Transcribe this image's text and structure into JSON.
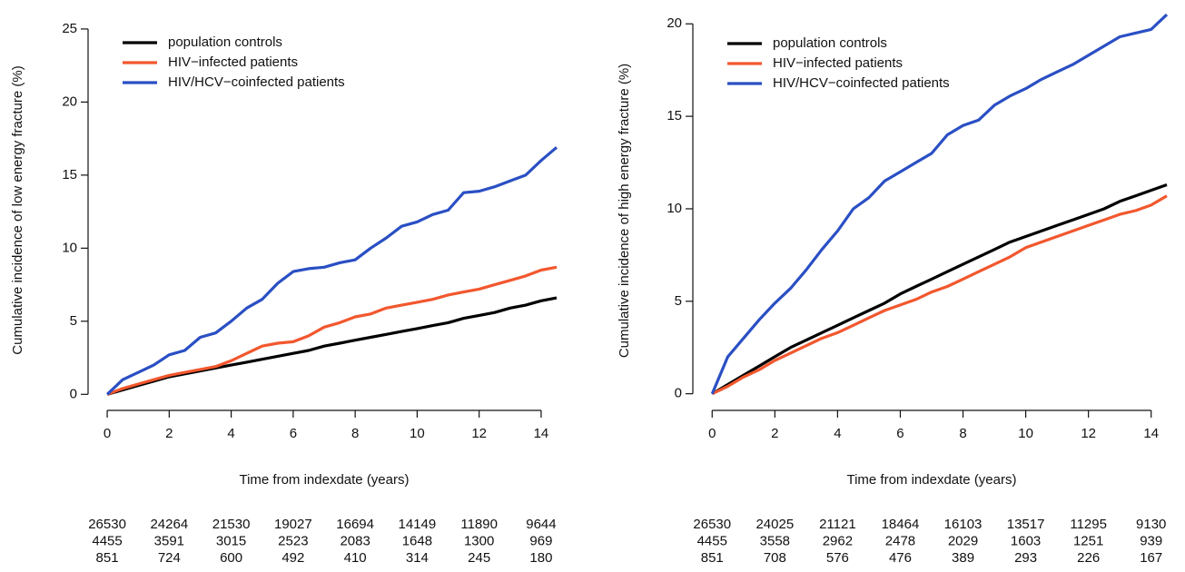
{
  "chart_data": [
    {
      "type": "line",
      "x_label": "Time from indexdate (years)",
      "y_label": "Cumulative incidence of low energy fracture (%)",
      "x": [
        0,
        0.5,
        1,
        1.5,
        2,
        2.5,
        3,
        3.5,
        4,
        4.5,
        5,
        5.5,
        6,
        6.5,
        7,
        7.5,
        8,
        8.5,
        9,
        9.5,
        10,
        10.5,
        11,
        11.5,
        12,
        12.5,
        13,
        13.5,
        14,
        14.5
      ],
      "series": [
        {
          "name": "population controls",
          "color": "#000000",
          "values": [
            0,
            0.3,
            0.6,
            0.9,
            1.2,
            1.4,
            1.6,
            1.8,
            2.0,
            2.2,
            2.4,
            2.6,
            2.8,
            3.0,
            3.3,
            3.5,
            3.7,
            3.9,
            4.1,
            4.3,
            4.5,
            4.7,
            4.9,
            5.2,
            5.4,
            5.6,
            5.9,
            6.1,
            6.4,
            6.6
          ]
        },
        {
          "name": "HIV−infected patients",
          "color": "#f2572e",
          "values": [
            0,
            0.4,
            0.7,
            1.0,
            1.3,
            1.5,
            1.7,
            1.9,
            2.3,
            2.8,
            3.3,
            3.5,
            3.6,
            4.0,
            4.6,
            4.9,
            5.3,
            5.5,
            5.9,
            6.1,
            6.3,
            6.5,
            6.8,
            7.0,
            7.2,
            7.5,
            7.8,
            8.1,
            8.5,
            8.7
          ]
        },
        {
          "name": "HIV/HCV−coinfected patients",
          "color": "#2a4fc4",
          "values": [
            0,
            1.0,
            1.5,
            2.0,
            2.7,
            3.0,
            3.9,
            4.2,
            5.0,
            5.9,
            6.5,
            7.6,
            8.4,
            8.6,
            8.7,
            9.0,
            9.2,
            10.0,
            10.7,
            11.5,
            11.8,
            12.3,
            12.6,
            13.8,
            13.9,
            14.2,
            14.6,
            15.0,
            16.0,
            16.9
          ]
        }
      ],
      "xlim": [
        -0.5,
        14.5
      ],
      "xticks": [
        0,
        2,
        4,
        6,
        8,
        10,
        12,
        14
      ],
      "ylim": [
        -1.1,
        26.3
      ],
      "yticks": [
        0,
        5,
        10,
        15,
        20,
        25
      ],
      "legend": "top-left",
      "at_risk": [
        [
          26530,
          24264,
          21530,
          19027,
          16694,
          14149,
          11890,
          9644
        ],
        [
          4455,
          3591,
          3015,
          2523,
          2083,
          1648,
          1300,
          969
        ],
        [
          851,
          724,
          600,
          492,
          410,
          314,
          245,
          180
        ]
      ]
    },
    {
      "type": "line",
      "x_label": "Time from indexdate (years)",
      "y_label": "Cumulative incidence of high energy fracture (%)",
      "x": [
        0,
        0.5,
        1,
        1.5,
        2,
        2.5,
        3,
        3.5,
        4,
        4.5,
        5,
        5.5,
        6,
        6.5,
        7,
        7.5,
        8,
        8.5,
        9,
        9.5,
        10,
        10.5,
        11,
        11.5,
        12,
        12.5,
        13,
        13.5,
        14,
        14.5
      ],
      "series": [
        {
          "name": "population controls",
          "color": "#000000",
          "values": [
            0,
            0.5,
            1.0,
            1.5,
            2.0,
            2.5,
            2.9,
            3.3,
            3.7,
            4.1,
            4.5,
            4.9,
            5.4,
            5.8,
            6.2,
            6.6,
            7.0,
            7.4,
            7.8,
            8.2,
            8.5,
            8.8,
            9.1,
            9.4,
            9.7,
            10.0,
            10.4,
            10.7,
            11.0,
            11.3
          ]
        },
        {
          "name": "HIV−infected patients",
          "color": "#f2572e",
          "values": [
            0,
            0.4,
            0.9,
            1.3,
            1.8,
            2.2,
            2.6,
            3.0,
            3.3,
            3.7,
            4.1,
            4.5,
            4.8,
            5.1,
            5.5,
            5.8,
            6.2,
            6.6,
            7.0,
            7.4,
            7.9,
            8.2,
            8.5,
            8.8,
            9.1,
            9.4,
            9.7,
            9.9,
            10.2,
            10.7
          ]
        },
        {
          "name": "HIV/HCV−coinfected patients",
          "color": "#2a4fc4",
          "values": [
            0,
            2.0,
            3.0,
            4.0,
            4.9,
            5.7,
            6.7,
            7.8,
            8.8,
            10.0,
            10.6,
            11.5,
            12.0,
            12.5,
            13.0,
            14.0,
            14.5,
            14.8,
            15.6,
            16.1,
            16.5,
            17.0,
            17.4,
            17.8,
            18.3,
            18.8,
            19.3,
            19.5,
            19.7,
            20.5
          ]
        }
      ],
      "xlim": [
        -0.5,
        14.5
      ],
      "xticks": [
        0,
        2,
        4,
        6,
        8,
        10,
        12,
        14
      ],
      "ylim": [
        -0.9,
        20.7
      ],
      "yticks": [
        0,
        5,
        10,
        15,
        20
      ],
      "legend": "top-left",
      "at_risk": [
        [
          26530,
          24025,
          21121,
          18464,
          16103,
          13517,
          11295,
          9130
        ],
        [
          4455,
          3558,
          2962,
          2478,
          2029,
          1603,
          1251,
          939
        ],
        [
          851,
          708,
          576,
          476,
          389,
          293,
          226,
          167
        ]
      ]
    }
  ]
}
